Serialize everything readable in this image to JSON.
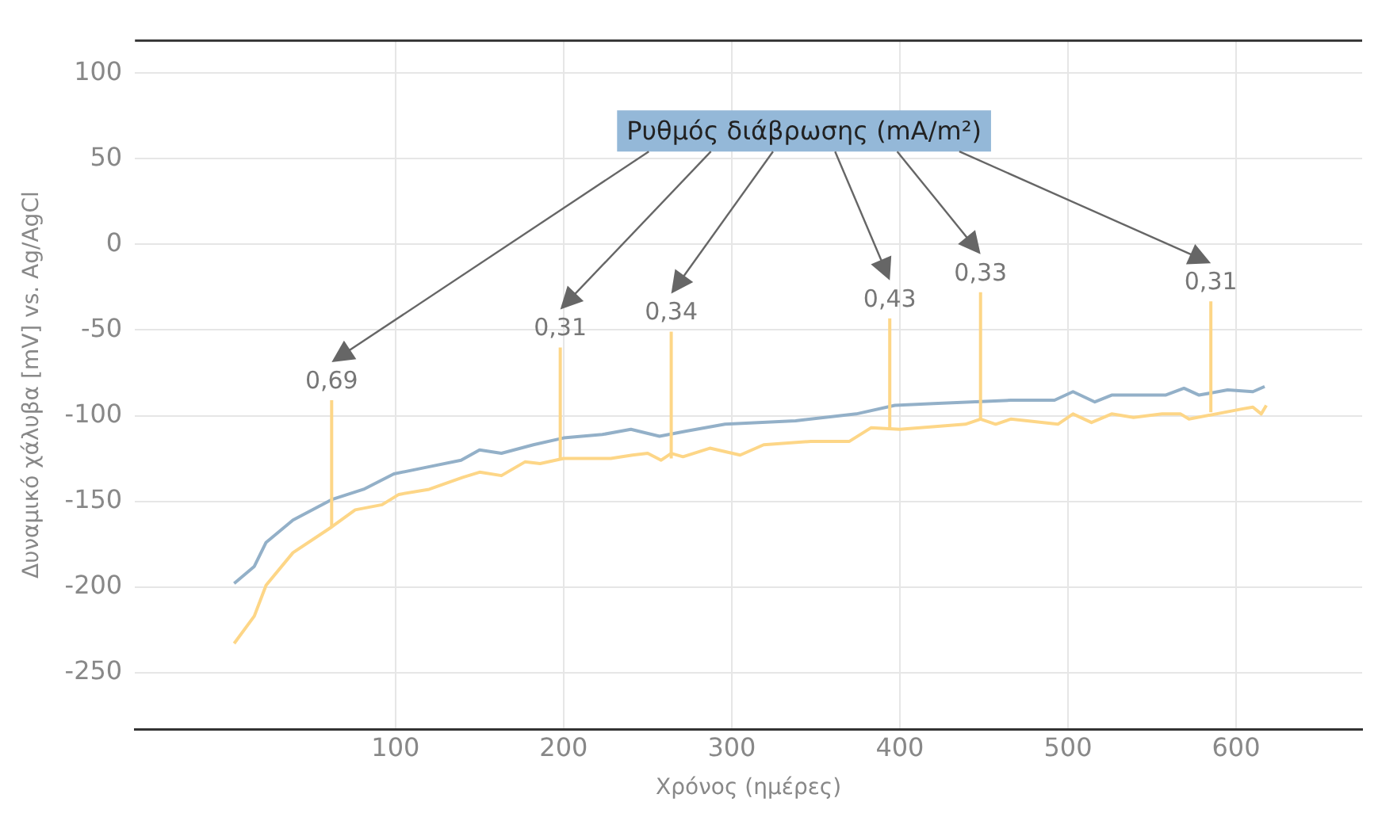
{
  "chart_data": {
    "type": "line",
    "xlabel": "Χρόνος (ημέρες)",
    "ylabel": "Δυναμικό χάλυβα [mV] vs. Ag/AgCl",
    "xlim": [
      -55,
      675
    ],
    "xticks": [
      100,
      200,
      300,
      400,
      500,
      600
    ],
    "ylim": [
      -283,
      119
    ],
    "yticks": [
      100,
      50,
      0,
      -50,
      -100,
      -150,
      -200,
      -250
    ],
    "grid": true,
    "legend": false,
    "marker": "none",
    "line_style": "solid",
    "series": [
      {
        "color": "#93b0c8",
        "x": [
          4,
          16,
          23,
          39,
          62,
          81,
          99,
          119,
          139,
          150,
          163,
          182,
          200,
          223,
          240,
          257,
          273,
          296,
          338,
          374,
          397,
          420,
          466,
          492,
          503,
          516,
          526,
          558,
          569,
          578,
          595,
          610,
          617
        ],
        "values": [
          -198,
          -188,
          -174,
          -161,
          -149,
          -143,
          -134,
          -130,
          -126,
          -120,
          -122,
          -117,
          -113,
          -111,
          -108,
          -112,
          -109,
          -105,
          -103,
          -99,
          -94,
          -93,
          -91,
          -91,
          -86,
          -92,
          -88,
          -88,
          -84,
          -88,
          -85,
          -86,
          -83
        ]
      },
      {
        "color": "#fdd687",
        "x": [
          4,
          16,
          23,
          39,
          62,
          76,
          92,
          102,
          120,
          140,
          150,
          163,
          177,
          186,
          200,
          228,
          241,
          250,
          258,
          264,
          271,
          287,
          305,
          319,
          347,
          370,
          383,
          400,
          439,
          448,
          457,
          466,
          494,
          503,
          514,
          526,
          539,
          556,
          567,
          572,
          604,
          610,
          615,
          618
        ],
        "values": [
          -233,
          -217,
          -199,
          -180,
          -165,
          -155,
          -152,
          -146,
          -143,
          -136,
          -133,
          -135,
          -127,
          -128,
          -125,
          -125,
          -123,
          -122,
          -126,
          -122,
          -124,
          -119,
          -123,
          -117,
          -115,
          -115,
          -107,
          -108,
          -105,
          -102,
          -105,
          -102,
          -105,
          -99,
          -104,
          -99,
          -101,
          -99,
          -99,
          -102,
          -96,
          -95,
          -99,
          -94
        ]
      }
    ],
    "annotations": [
      "Ρυθμός διάβρωσης (mA/m²)",
      {
        "text": "0,69",
        "x": 62,
        "y": -165
      },
      {
        "text": "0,31",
        "x": 198,
        "y": -125
      },
      {
        "text": "0,34",
        "x": 264,
        "y": -125
      },
      {
        "text": "0,43",
        "x": 394,
        "y": -108
      },
      {
        "text": "0,33",
        "x": 448,
        "y": -102
      },
      {
        "text": "0,31",
        "x": 585,
        "y": -98
      }
    ]
  }
}
